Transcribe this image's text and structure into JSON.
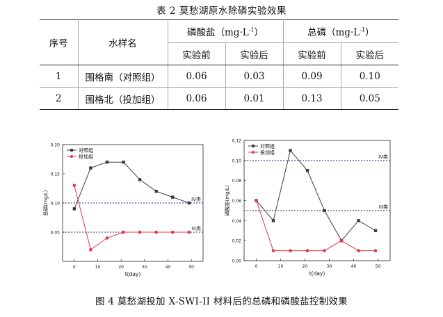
{
  "table": {
    "caption": "表 2   莫愁湖原水除磷实验效果",
    "headers": {
      "index": "序号",
      "sample": "水样名",
      "phosphate": "磷酸盐（mg·L",
      "phosphate_sup": "-1",
      "phosphate_close": "）",
      "total": "总磷（mg·L",
      "total_sup": "-1",
      "total_close": "）",
      "before": "实验前",
      "after": "实验后"
    },
    "rows": [
      {
        "index": "1",
        "sample": "围格南（对照组）",
        "p_before": "0.06",
        "p_after": "0.03",
        "tp_before": "0.09",
        "tp_after": "0.10"
      },
      {
        "index": "2",
        "sample": "围格北（投加组）",
        "p_before": "0.06",
        "p_after": "0.01",
        "tp_before": "0.13",
        "tp_after": "0.05"
      }
    ]
  },
  "figure_caption": "图 4   莫愁湖投加 X-SWI-II 材料后的总磷和磷酸盐控制效果",
  "chart_data": [
    {
      "type": "line",
      "ylabel": "总磷(mg/L)",
      "xlabel": "t(day)",
      "x": [
        0,
        7,
        14,
        21,
        28,
        35,
        42,
        49
      ],
      "xticks": [
        0,
        10,
        20,
        30,
        40,
        50
      ],
      "yticks": [
        0.05,
        0.1,
        0.15,
        0.2
      ],
      "ytick_labels": [
        "0.05",
        "0.10",
        "0.15",
        "0.20"
      ],
      "xlim": [
        -5,
        55
      ],
      "ylim": [
        0.0,
        0.2
      ],
      "series": [
        {
          "name": "对照组",
          "color": "#3a3a3a",
          "marker": "square",
          "values": [
            0.09,
            0.16,
            0.17,
            0.17,
            0.14,
            0.12,
            0.11,
            0.1
          ]
        },
        {
          "name": "投加组",
          "color": "#e8344a",
          "marker": "circle",
          "values": [
            0.13,
            0.02,
            0.04,
            0.05,
            0.05,
            0.05,
            0.05,
            0.05
          ]
        }
      ],
      "reference_lines": [
        {
          "label": "IV类",
          "value": 0.1,
          "color": "#1f2a8a"
        },
        {
          "label": "III类",
          "value": 0.05,
          "color": "#1f2a8a"
        }
      ],
      "legend": "top-left"
    },
    {
      "type": "line",
      "ylabel": "磷酸盐(mg/L)",
      "xlabel": "t(day)",
      "x": [
        0,
        7,
        14,
        21,
        28,
        35,
        42,
        49
      ],
      "xticks": [
        0,
        10,
        20,
        30,
        40,
        50
      ],
      "yticks": [
        0.0,
        0.02,
        0.04,
        0.06,
        0.08,
        0.1,
        0.12
      ],
      "ytick_labels": [
        "0.00",
        "0.02",
        "0.04",
        "0.06",
        "0.08",
        "0.10",
        "0.12"
      ],
      "xlim": [
        -5,
        55
      ],
      "ylim": [
        0.0,
        0.12
      ],
      "series": [
        {
          "name": "对照组",
          "color": "#3a3a3a",
          "marker": "square",
          "values": [
            0.06,
            0.04,
            0.11,
            0.09,
            0.05,
            0.02,
            0.04,
            0.03
          ]
        },
        {
          "name": "投加组",
          "color": "#e8344a",
          "marker": "circle",
          "values": [
            0.06,
            0.01,
            0.01,
            0.01,
            0.01,
            0.02,
            0.01,
            0.01
          ]
        }
      ],
      "reference_lines": [
        {
          "label": "IV类",
          "value": 0.1,
          "color": "#1f2a8a"
        },
        {
          "label": "III类",
          "value": 0.05,
          "color": "#1f2a8a"
        }
      ],
      "legend": "top-left"
    }
  ]
}
